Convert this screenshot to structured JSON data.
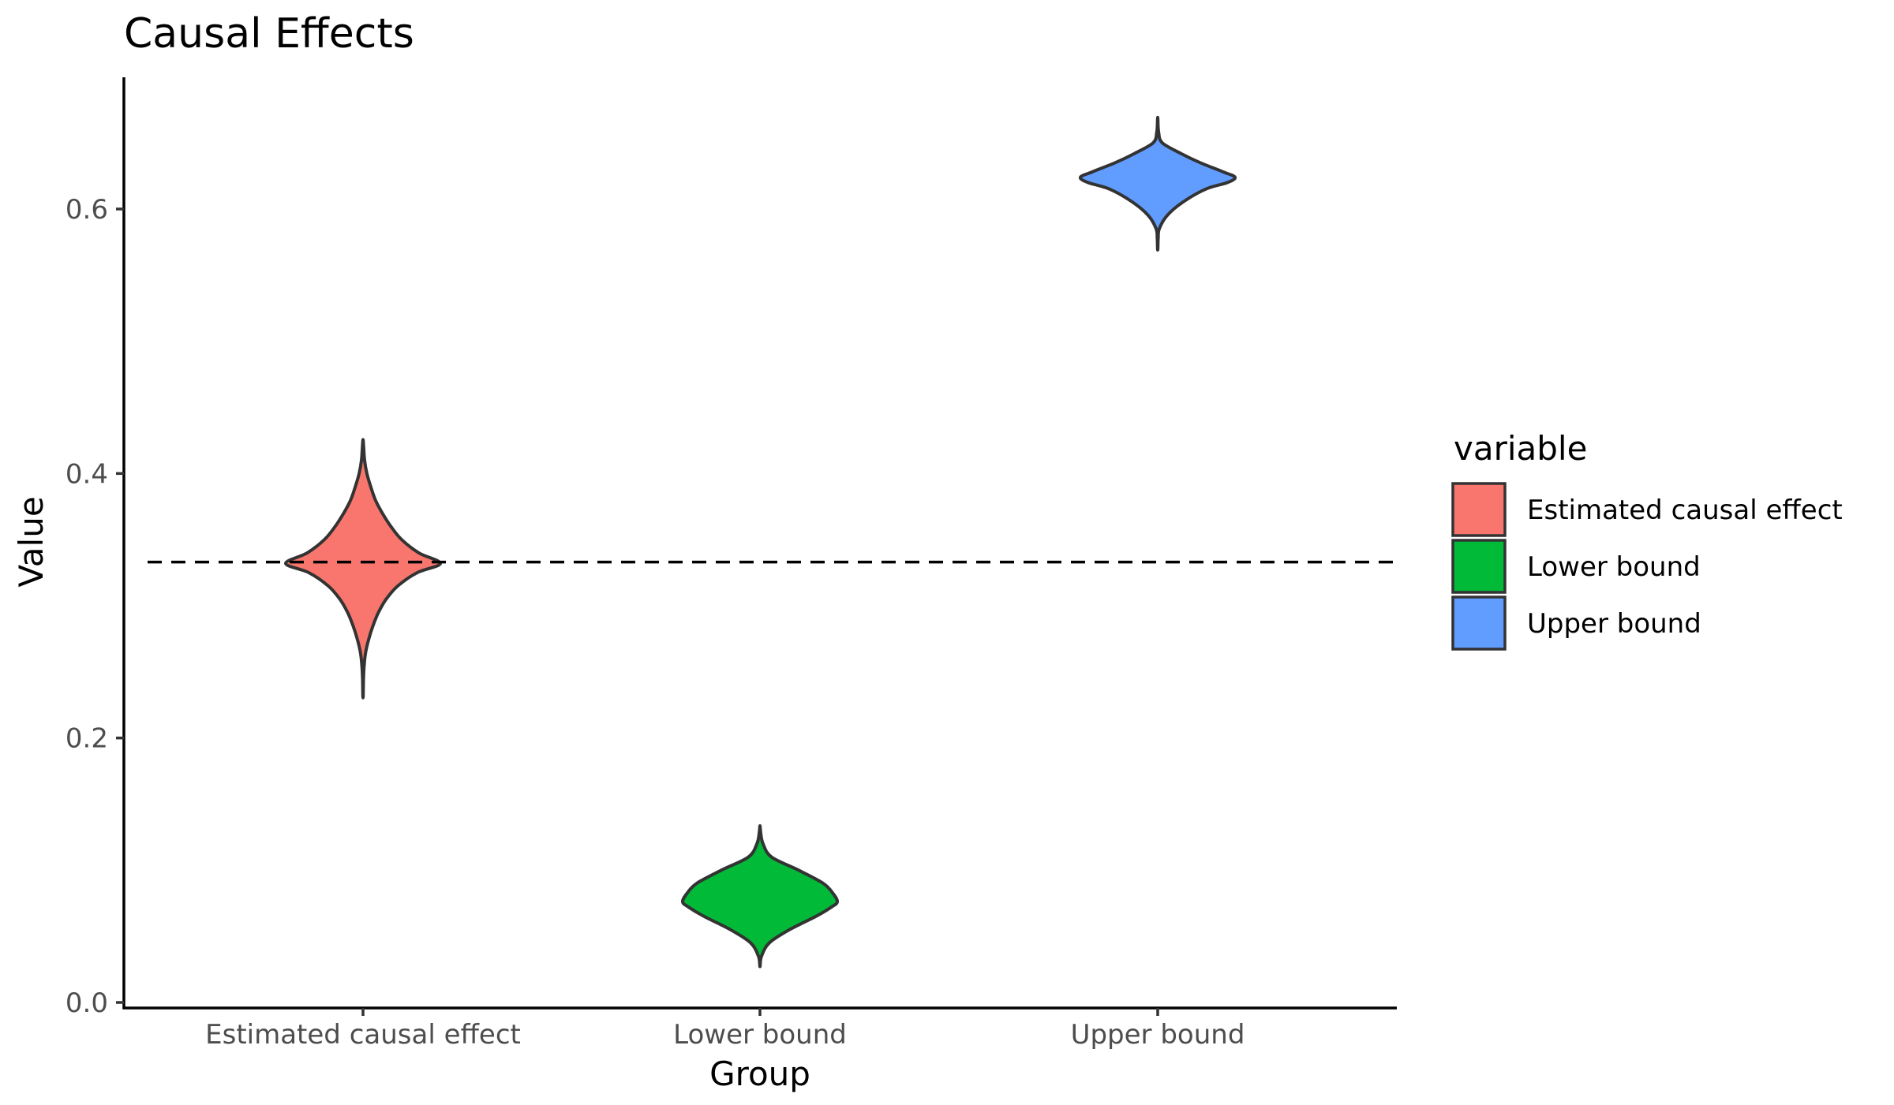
{
  "chart_data": {
    "type": "violin",
    "title": "Causal Effects",
    "xlabel": "Group",
    "ylabel": "Value",
    "categories": [
      "Estimated causal effect",
      "Lower bound",
      "Upper bound"
    ],
    "ylim": [
      0,
      0.7
    ],
    "yticks": [
      0.0,
      0.2,
      0.4,
      0.6
    ],
    "ytick_labels": [
      "0.0",
      "0.2",
      "0.4",
      "0.6"
    ],
    "reference_line": {
      "y": 0.333,
      "style": "dashed"
    },
    "grid": false,
    "legend": {
      "title": "variable",
      "position": "right",
      "entries": [
        "Estimated causal effect",
        "Lower bound",
        "Upper bound"
      ]
    },
    "series": [
      {
        "name": "Estimated causal effect",
        "color": "#F8766D",
        "min": 0.232,
        "max": 0.425,
        "median": 0.332,
        "profile": [
          [
            0.232,
            0.002
          ],
          [
            0.245,
            0.006
          ],
          [
            0.255,
            0.015
          ],
          [
            0.265,
            0.035
          ],
          [
            0.275,
            0.075
          ],
          [
            0.285,
            0.13
          ],
          [
            0.295,
            0.2
          ],
          [
            0.305,
            0.3
          ],
          [
            0.315,
            0.45
          ],
          [
            0.325,
            0.7
          ],
          [
            0.332,
            1.0
          ],
          [
            0.34,
            0.72
          ],
          [
            0.35,
            0.5
          ],
          [
            0.36,
            0.36
          ],
          [
            0.37,
            0.25
          ],
          [
            0.38,
            0.16
          ],
          [
            0.39,
            0.1
          ],
          [
            0.4,
            0.05
          ],
          [
            0.41,
            0.02
          ],
          [
            0.42,
            0.008
          ],
          [
            0.425,
            0.002
          ]
        ]
      },
      {
        "name": "Lower bound",
        "color": "#00BA38",
        "min": 0.028,
        "max": 0.133,
        "median": 0.076,
        "profile": [
          [
            0.028,
            0.002
          ],
          [
            0.035,
            0.02
          ],
          [
            0.045,
            0.12
          ],
          [
            0.055,
            0.38
          ],
          [
            0.065,
            0.72
          ],
          [
            0.072,
            0.92
          ],
          [
            0.076,
            1.0
          ],
          [
            0.082,
            0.95
          ],
          [
            0.09,
            0.82
          ],
          [
            0.1,
            0.5
          ],
          [
            0.11,
            0.15
          ],
          [
            0.12,
            0.04
          ],
          [
            0.128,
            0.01
          ],
          [
            0.133,
            0.002
          ]
        ]
      },
      {
        "name": "Upper bound",
        "color": "#619CFF",
        "min": 0.57,
        "max": 0.668,
        "median": 0.624,
        "profile": [
          [
            0.57,
            0.002
          ],
          [
            0.578,
            0.006
          ],
          [
            0.585,
            0.02
          ],
          [
            0.595,
            0.12
          ],
          [
            0.605,
            0.32
          ],
          [
            0.615,
            0.62
          ],
          [
            0.62,
            0.9
          ],
          [
            0.624,
            1.0
          ],
          [
            0.628,
            0.85
          ],
          [
            0.635,
            0.55
          ],
          [
            0.642,
            0.3
          ],
          [
            0.65,
            0.06
          ],
          [
            0.658,
            0.012
          ],
          [
            0.668,
            0.002
          ]
        ]
      }
    ]
  }
}
